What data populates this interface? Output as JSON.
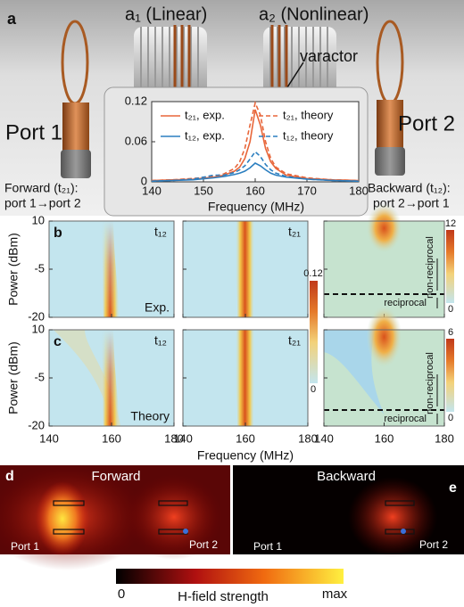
{
  "panel_a": {
    "label": "a",
    "coil_1": "a₁ (Linear)",
    "coil_2": "a₂ (Nonlinear)",
    "varactor": "varactor",
    "port_1": "Port 1",
    "port_2": "Port 2",
    "forward": [
      "Forward (t₂₁):",
      "port 1→port 2"
    ],
    "backward": [
      "Backward (t₁₂):",
      "port 2→port 1"
    ]
  },
  "chart_data": {
    "type": "line",
    "x_label": "Frequency (MHz)",
    "x": [
      140,
      144,
      148,
      152,
      154,
      156,
      157,
      158,
      159,
      160,
      161,
      162,
      163,
      164,
      166,
      170,
      175,
      180
    ],
    "xlim": [
      140,
      180
    ],
    "xticks": [
      140,
      150,
      160,
      170,
      180
    ],
    "ylim": [
      0,
      0.12
    ],
    "yticks": [
      0,
      0.06,
      0.12
    ],
    "series": [
      {
        "name": "t₂₁, exp.",
        "color": "#e8663a",
        "line_style": "solid",
        "values": [
          0.002,
          0.003,
          0.004,
          0.007,
          0.01,
          0.016,
          0.022,
          0.035,
          0.06,
          0.108,
          0.085,
          0.05,
          0.03,
          0.02,
          0.01,
          0.005,
          0.003,
          0.002
        ]
      },
      {
        "name": "t₂₁, theory",
        "color": "#e8663a",
        "line_style": "dashed",
        "values": [
          0.002,
          0.003,
          0.005,
          0.008,
          0.012,
          0.02,
          0.03,
          0.05,
          0.085,
          0.118,
          0.1,
          0.06,
          0.035,
          0.022,
          0.012,
          0.006,
          0.003,
          0.002
        ]
      },
      {
        "name": "t₁₂, exp.",
        "color": "#2c7fc0",
        "line_style": "solid",
        "values": [
          0.001,
          0.002,
          0.003,
          0.006,
          0.008,
          0.011,
          0.013,
          0.016,
          0.021,
          0.028,
          0.024,
          0.018,
          0.013,
          0.01,
          0.007,
          0.004,
          0.002,
          0.001
        ]
      },
      {
        "name": "t₁₂, theory",
        "color": "#2c7fc0",
        "line_style": "dashed",
        "values": [
          0.001,
          0.002,
          0.004,
          0.01,
          0.01,
          0.014,
          0.018,
          0.024,
          0.034,
          0.045,
          0.038,
          0.026,
          0.018,
          0.013,
          0.008,
          0.004,
          0.002,
          0.001
        ]
      }
    ]
  },
  "panels_bc": {
    "x_label": "Frequency (MHz)",
    "y_label": "Power (dBm)",
    "xlim": [
      140,
      180
    ],
    "xticks": [
      140,
      160,
      180
    ],
    "ylim": [
      -20,
      10
    ],
    "yticks": [
      10,
      -5,
      -20
    ],
    "transmission_colorbar": [
      0.12,
      0
    ],
    "rows": [
      {
        "label": "b",
        "titles": [
          "t₁₂",
          "t₂₁"
        ],
        "note": "Exp.",
        "contrast_colorbar": [
          12,
          0
        ],
        "upper": "non-reciprocal",
        "lower": "reciprocal"
      },
      {
        "label": "c",
        "titles": [
          "t₁₂",
          "t₂₁"
        ],
        "note": "Theory",
        "contrast_colorbar": [
          6,
          0
        ],
        "upper": "non-reciprocal",
        "lower": "reciprocal"
      }
    ]
  },
  "panels_de": {
    "d": {
      "label": "d",
      "title": "Forward",
      "port_1": "Port 1",
      "port_2": "Port 2"
    },
    "e": {
      "label": "e",
      "title": "Backward",
      "port_1": "Port 1",
      "port_2": "Port 2"
    },
    "colorbar": {
      "min": 0,
      "title": "H-field strength",
      "max": "max"
    }
  }
}
